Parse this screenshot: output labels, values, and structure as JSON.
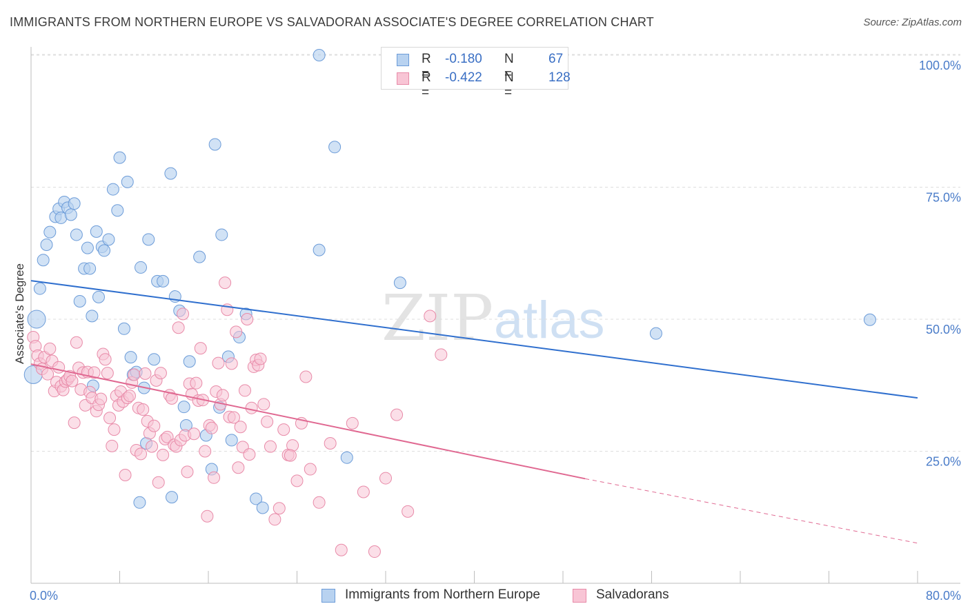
{
  "title": "IMMIGRANTS FROM NORTHERN EUROPE VS SALVADORAN ASSOCIATE'S DEGREE CORRELATION CHART",
  "source": "Source: ZipAtlas.com",
  "watermark": {
    "zip": "ZIP",
    "atlas": "atlas"
  },
  "legend": {
    "rows": [
      {
        "r_label": "R =",
        "r_value": "-0.180",
        "n_label": "N =",
        "n_value": "67"
      },
      {
        "r_label": "R =",
        "r_value": "-0.422",
        "n_label": "N =",
        "n_value": "128"
      }
    ]
  },
  "bottom_legend": {
    "series1": "Immigrants from Northern Europe",
    "series2": "Salvadorans"
  },
  "colors": {
    "blue_fill": "#b8d2f0",
    "blue_stroke": "#6b9bd8",
    "blue_line": "#2f6fce",
    "pink_fill": "#f8c5d5",
    "pink_stroke": "#e88aa8",
    "pink_line": "#e06891",
    "tick_text": "#4a7cc9",
    "grid": "#dddddd"
  },
  "chart_data": {
    "type": "scatter",
    "title": "IMMIGRANTS FROM NORTHERN EUROPE VS SALVADORAN ASSOCIATE'S DEGREE CORRELATION CHART",
    "xlabel": "",
    "ylabel": "Associate's Degree",
    "xlim": [
      0,
      80
    ],
    "ylim": [
      0,
      102
    ],
    "x_tick_labels": [
      "0.0%",
      "80.0%"
    ],
    "y_ticks": [
      25,
      50,
      75,
      100
    ],
    "y_tick_labels": [
      "25.0%",
      "50.0%",
      "75.0%",
      "100.0%"
    ],
    "grid": "horizontal dashed",
    "legend_placement": "top-center",
    "series": [
      {
        "name": "Immigrants from Northern Europe",
        "color": "#b8d2f0",
        "trend": {
          "x": [
            0,
            80
          ],
          "y": [
            57.3,
            35.1
          ]
        },
        "points": [
          [
            0.2,
            39.5
          ],
          [
            0.5,
            50.0
          ],
          [
            0.8,
            55.8
          ],
          [
            1.1,
            61.2
          ],
          [
            1.4,
            64.1
          ],
          [
            1.7,
            66.5
          ],
          [
            2.2,
            69.4
          ],
          [
            2.5,
            70.9
          ],
          [
            2.7,
            69.2
          ],
          [
            3.0,
            72.2
          ],
          [
            3.3,
            71.1
          ],
          [
            3.6,
            69.8
          ],
          [
            3.9,
            71.9
          ],
          [
            4.1,
            66.0
          ],
          [
            4.4,
            53.4
          ],
          [
            4.8,
            59.6
          ],
          [
            5.1,
            63.5
          ],
          [
            5.3,
            59.6
          ],
          [
            5.5,
            50.6
          ],
          [
            5.9,
            66.6
          ],
          [
            6.1,
            54.2
          ],
          [
            6.4,
            63.7
          ],
          [
            6.6,
            63.0
          ],
          [
            7.0,
            65.1
          ],
          [
            7.4,
            74.6
          ],
          [
            7.8,
            70.6
          ],
          [
            8.0,
            80.6
          ],
          [
            8.4,
            48.2
          ],
          [
            8.7,
            76.0
          ],
          [
            9.0,
            42.8
          ],
          [
            9.2,
            39.5
          ],
          [
            9.5,
            40.0
          ],
          [
            9.9,
            59.8
          ],
          [
            10.2,
            37.0
          ],
          [
            10.4,
            26.5
          ],
          [
            10.6,
            65.1
          ],
          [
            11.1,
            42.4
          ],
          [
            11.4,
            57.2
          ],
          [
            11.9,
            57.2
          ],
          [
            12.6,
            77.6
          ],
          [
            13.0,
            54.3
          ],
          [
            13.4,
            51.6
          ],
          [
            13.8,
            33.4
          ],
          [
            14.0,
            29.9
          ],
          [
            14.3,
            42.0
          ],
          [
            15.2,
            61.8
          ],
          [
            15.8,
            28.0
          ],
          [
            16.3,
            21.6
          ],
          [
            16.6,
            83.1
          ],
          [
            17.2,
            66.0
          ],
          [
            17.8,
            42.9
          ],
          [
            18.1,
            27.1
          ],
          [
            18.8,
            46.6
          ],
          [
            19.4,
            51.0
          ],
          [
            20.3,
            16.0
          ],
          [
            20.9,
            14.3
          ],
          [
            26.0,
            100.0
          ],
          [
            26.0,
            63.1
          ],
          [
            27.4,
            82.6
          ],
          [
            28.5,
            23.8
          ],
          [
            33.3,
            56.9
          ],
          [
            56.4,
            47.3
          ],
          [
            75.7,
            49.9
          ],
          [
            5.6,
            37.4
          ],
          [
            9.8,
            15.3
          ],
          [
            12.7,
            16.3
          ],
          [
            17.0,
            33.3
          ]
        ]
      },
      {
        "name": "Salvadorans",
        "color": "#f8c5d5",
        "trend": {
          "x": [
            0,
            50
          ],
          "y": [
            41.5,
            19.8
          ]
        },
        "trend_dashed": {
          "x": [
            50,
            80
          ],
          "y": [
            19.8,
            7.6
          ]
        },
        "points": [
          [
            0.2,
            46.6
          ],
          [
            0.4,
            44.9
          ],
          [
            0.6,
            43.1
          ],
          [
            0.8,
            41.6
          ],
          [
            1.0,
            40.6
          ],
          [
            1.2,
            42.8
          ],
          [
            1.5,
            39.6
          ],
          [
            1.7,
            44.4
          ],
          [
            1.9,
            42.1
          ],
          [
            2.1,
            36.4
          ],
          [
            2.3,
            38.1
          ],
          [
            2.5,
            40.9
          ],
          [
            2.7,
            37.3
          ],
          [
            2.9,
            36.6
          ],
          [
            3.1,
            38.2
          ],
          [
            3.3,
            38.6
          ],
          [
            3.5,
            39.2
          ],
          [
            3.7,
            38.3
          ],
          [
            3.9,
            30.4
          ],
          [
            4.1,
            45.6
          ],
          [
            4.3,
            40.8
          ],
          [
            4.5,
            36.7
          ],
          [
            4.7,
            39.9
          ],
          [
            4.9,
            33.7
          ],
          [
            5.1,
            40.0
          ],
          [
            5.3,
            36.2
          ],
          [
            5.5,
            35.1
          ],
          [
            5.7,
            39.9
          ],
          [
            5.9,
            32.6
          ],
          [
            6.1,
            33.8
          ],
          [
            6.3,
            34.9
          ],
          [
            6.5,
            43.4
          ],
          [
            6.7,
            42.4
          ],
          [
            6.9,
            39.8
          ],
          [
            7.1,
            31.3
          ],
          [
            7.3,
            26.0
          ],
          [
            7.5,
            29.1
          ],
          [
            7.7,
            35.5
          ],
          [
            7.9,
            33.7
          ],
          [
            8.1,
            36.3
          ],
          [
            8.3,
            34.4
          ],
          [
            8.5,
            20.5
          ],
          [
            8.7,
            35.1
          ],
          [
            8.9,
            35.5
          ],
          [
            9.1,
            38.0
          ],
          [
            9.3,
            39.5
          ],
          [
            9.5,
            25.2
          ],
          [
            9.7,
            33.2
          ],
          [
            9.9,
            24.5
          ],
          [
            10.1,
            32.9
          ],
          [
            10.3,
            39.7
          ],
          [
            10.5,
            30.7
          ],
          [
            10.7,
            28.4
          ],
          [
            10.9,
            25.9
          ],
          [
            11.1,
            29.8
          ],
          [
            11.3,
            38.4
          ],
          [
            11.5,
            19.1
          ],
          [
            11.7,
            39.8
          ],
          [
            11.9,
            24.3
          ],
          [
            12.1,
            27.3
          ],
          [
            12.3,
            27.7
          ],
          [
            12.5,
            35.6
          ],
          [
            12.7,
            35.0
          ],
          [
            12.9,
            26.2
          ],
          [
            13.1,
            25.9
          ],
          [
            13.3,
            48.4
          ],
          [
            13.5,
            27.1
          ],
          [
            13.7,
            51.0
          ],
          [
            13.9,
            28.0
          ],
          [
            14.1,
            21.1
          ],
          [
            14.3,
            37.8
          ],
          [
            14.5,
            35.8
          ],
          [
            14.7,
            28.3
          ],
          [
            14.9,
            37.9
          ],
          [
            15.1,
            34.6
          ],
          [
            15.3,
            44.5
          ],
          [
            15.5,
            34.7
          ],
          [
            15.7,
            25.0
          ],
          [
            15.9,
            12.7
          ],
          [
            16.1,
            29.9
          ],
          [
            16.3,
            29.4
          ],
          [
            16.5,
            20.0
          ],
          [
            16.7,
            36.3
          ],
          [
            16.9,
            41.7
          ],
          [
            17.1,
            33.9
          ],
          [
            17.3,
            35.6
          ],
          [
            17.5,
            56.9
          ],
          [
            17.7,
            51.8
          ],
          [
            17.9,
            31.5
          ],
          [
            18.1,
            41.6
          ],
          [
            18.3,
            31.4
          ],
          [
            18.5,
            47.6
          ],
          [
            18.7,
            21.9
          ],
          [
            18.9,
            29.6
          ],
          [
            19.1,
            25.8
          ],
          [
            19.3,
            36.5
          ],
          [
            19.5,
            50.0
          ],
          [
            19.7,
            24.4
          ],
          [
            19.9,
            33.2
          ],
          [
            20.1,
            41.0
          ],
          [
            20.3,
            42.3
          ],
          [
            20.5,
            41.3
          ],
          [
            20.7,
            42.5
          ],
          [
            21.0,
            33.9
          ],
          [
            21.3,
            30.6
          ],
          [
            21.6,
            25.9
          ],
          [
            22.0,
            12.1
          ],
          [
            22.4,
            14.2
          ],
          [
            22.8,
            29.1
          ],
          [
            23.2,
            24.3
          ],
          [
            23.6,
            26.1
          ],
          [
            24.0,
            19.4
          ],
          [
            24.4,
            30.3
          ],
          [
            24.8,
            39.1
          ],
          [
            25.2,
            21.6
          ],
          [
            26.0,
            15.3
          ],
          [
            27.0,
            26.5
          ],
          [
            28.0,
            6.3
          ],
          [
            29.0,
            30.3
          ],
          [
            30.0,
            17.3
          ],
          [
            31.0,
            6.0
          ],
          [
            32.0,
            19.9
          ],
          [
            33.0,
            31.9
          ],
          [
            34.0,
            13.6
          ],
          [
            36.0,
            50.6
          ],
          [
            37.0,
            43.3
          ],
          [
            23.4,
            24.2
          ]
        ]
      }
    ]
  }
}
